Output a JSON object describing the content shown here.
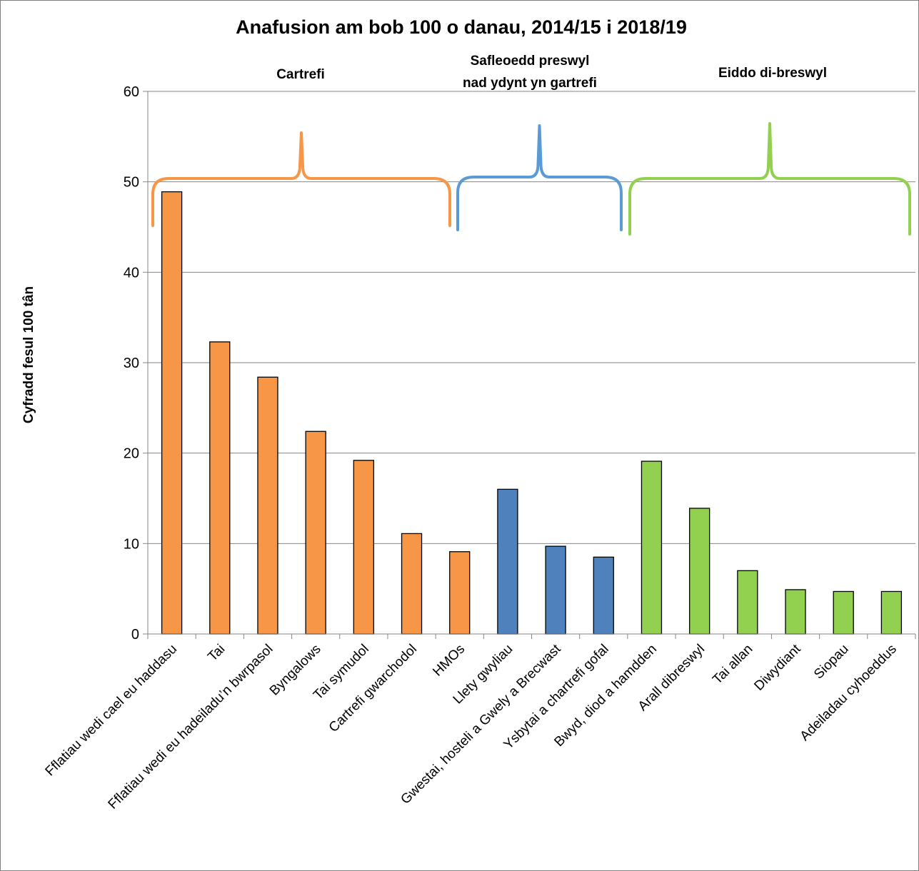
{
  "chart_data": {
    "type": "bar",
    "title": "Anafusion am bob 100 o danau, 2014/15 i 2018/19",
    "ylabel": "Cyfradd fesul 100 tân",
    "xlabel": "",
    "ylim": [
      0,
      60
    ],
    "yticks": [
      0,
      10,
      20,
      30,
      40,
      50,
      60
    ],
    "grid": true,
    "categories": [
      "Fflatiau wedi cael eu haddasu",
      "Tai",
      "Fflatiau wedi eu hadeiladu’n bwrpasol",
      "Byngalows",
      "Tai symudol",
      "Cartrefi gwarchodol",
      "HMOs",
      "Llety gwyliau",
      "Gwestai, hosteli a Gwely a Brecwast",
      "Ysbytai a chartrefi gofal",
      "Bwyd, diod a hamdden",
      "Arall dibreswyl",
      "Tai allan",
      "Diwydiant",
      "Siopau",
      "Adeiladau cyhoeddus"
    ],
    "values": [
      48.9,
      32.3,
      28.4,
      22.4,
      19.2,
      11.1,
      9.1,
      16.0,
      9.7,
      8.5,
      19.1,
      13.9,
      7.0,
      4.9,
      4.7,
      4.7
    ],
    "groups": [
      {
        "label_lines": [
          "Cartrefi"
        ],
        "start": 0,
        "end": 6,
        "color": "#f79646"
      },
      {
        "label_lines": [
          "Safleoedd preswyl",
          "nad ydynt yn gartrefi"
        ],
        "start": 7,
        "end": 9,
        "color": "#4f81bd"
      },
      {
        "label_lines": [
          "Eiddo di-breswyl"
        ],
        "start": 10,
        "end": 15,
        "color": "#92d050"
      }
    ],
    "bracket_colors": [
      "#f79646",
      "#5b9bd5",
      "#92d050"
    ]
  }
}
